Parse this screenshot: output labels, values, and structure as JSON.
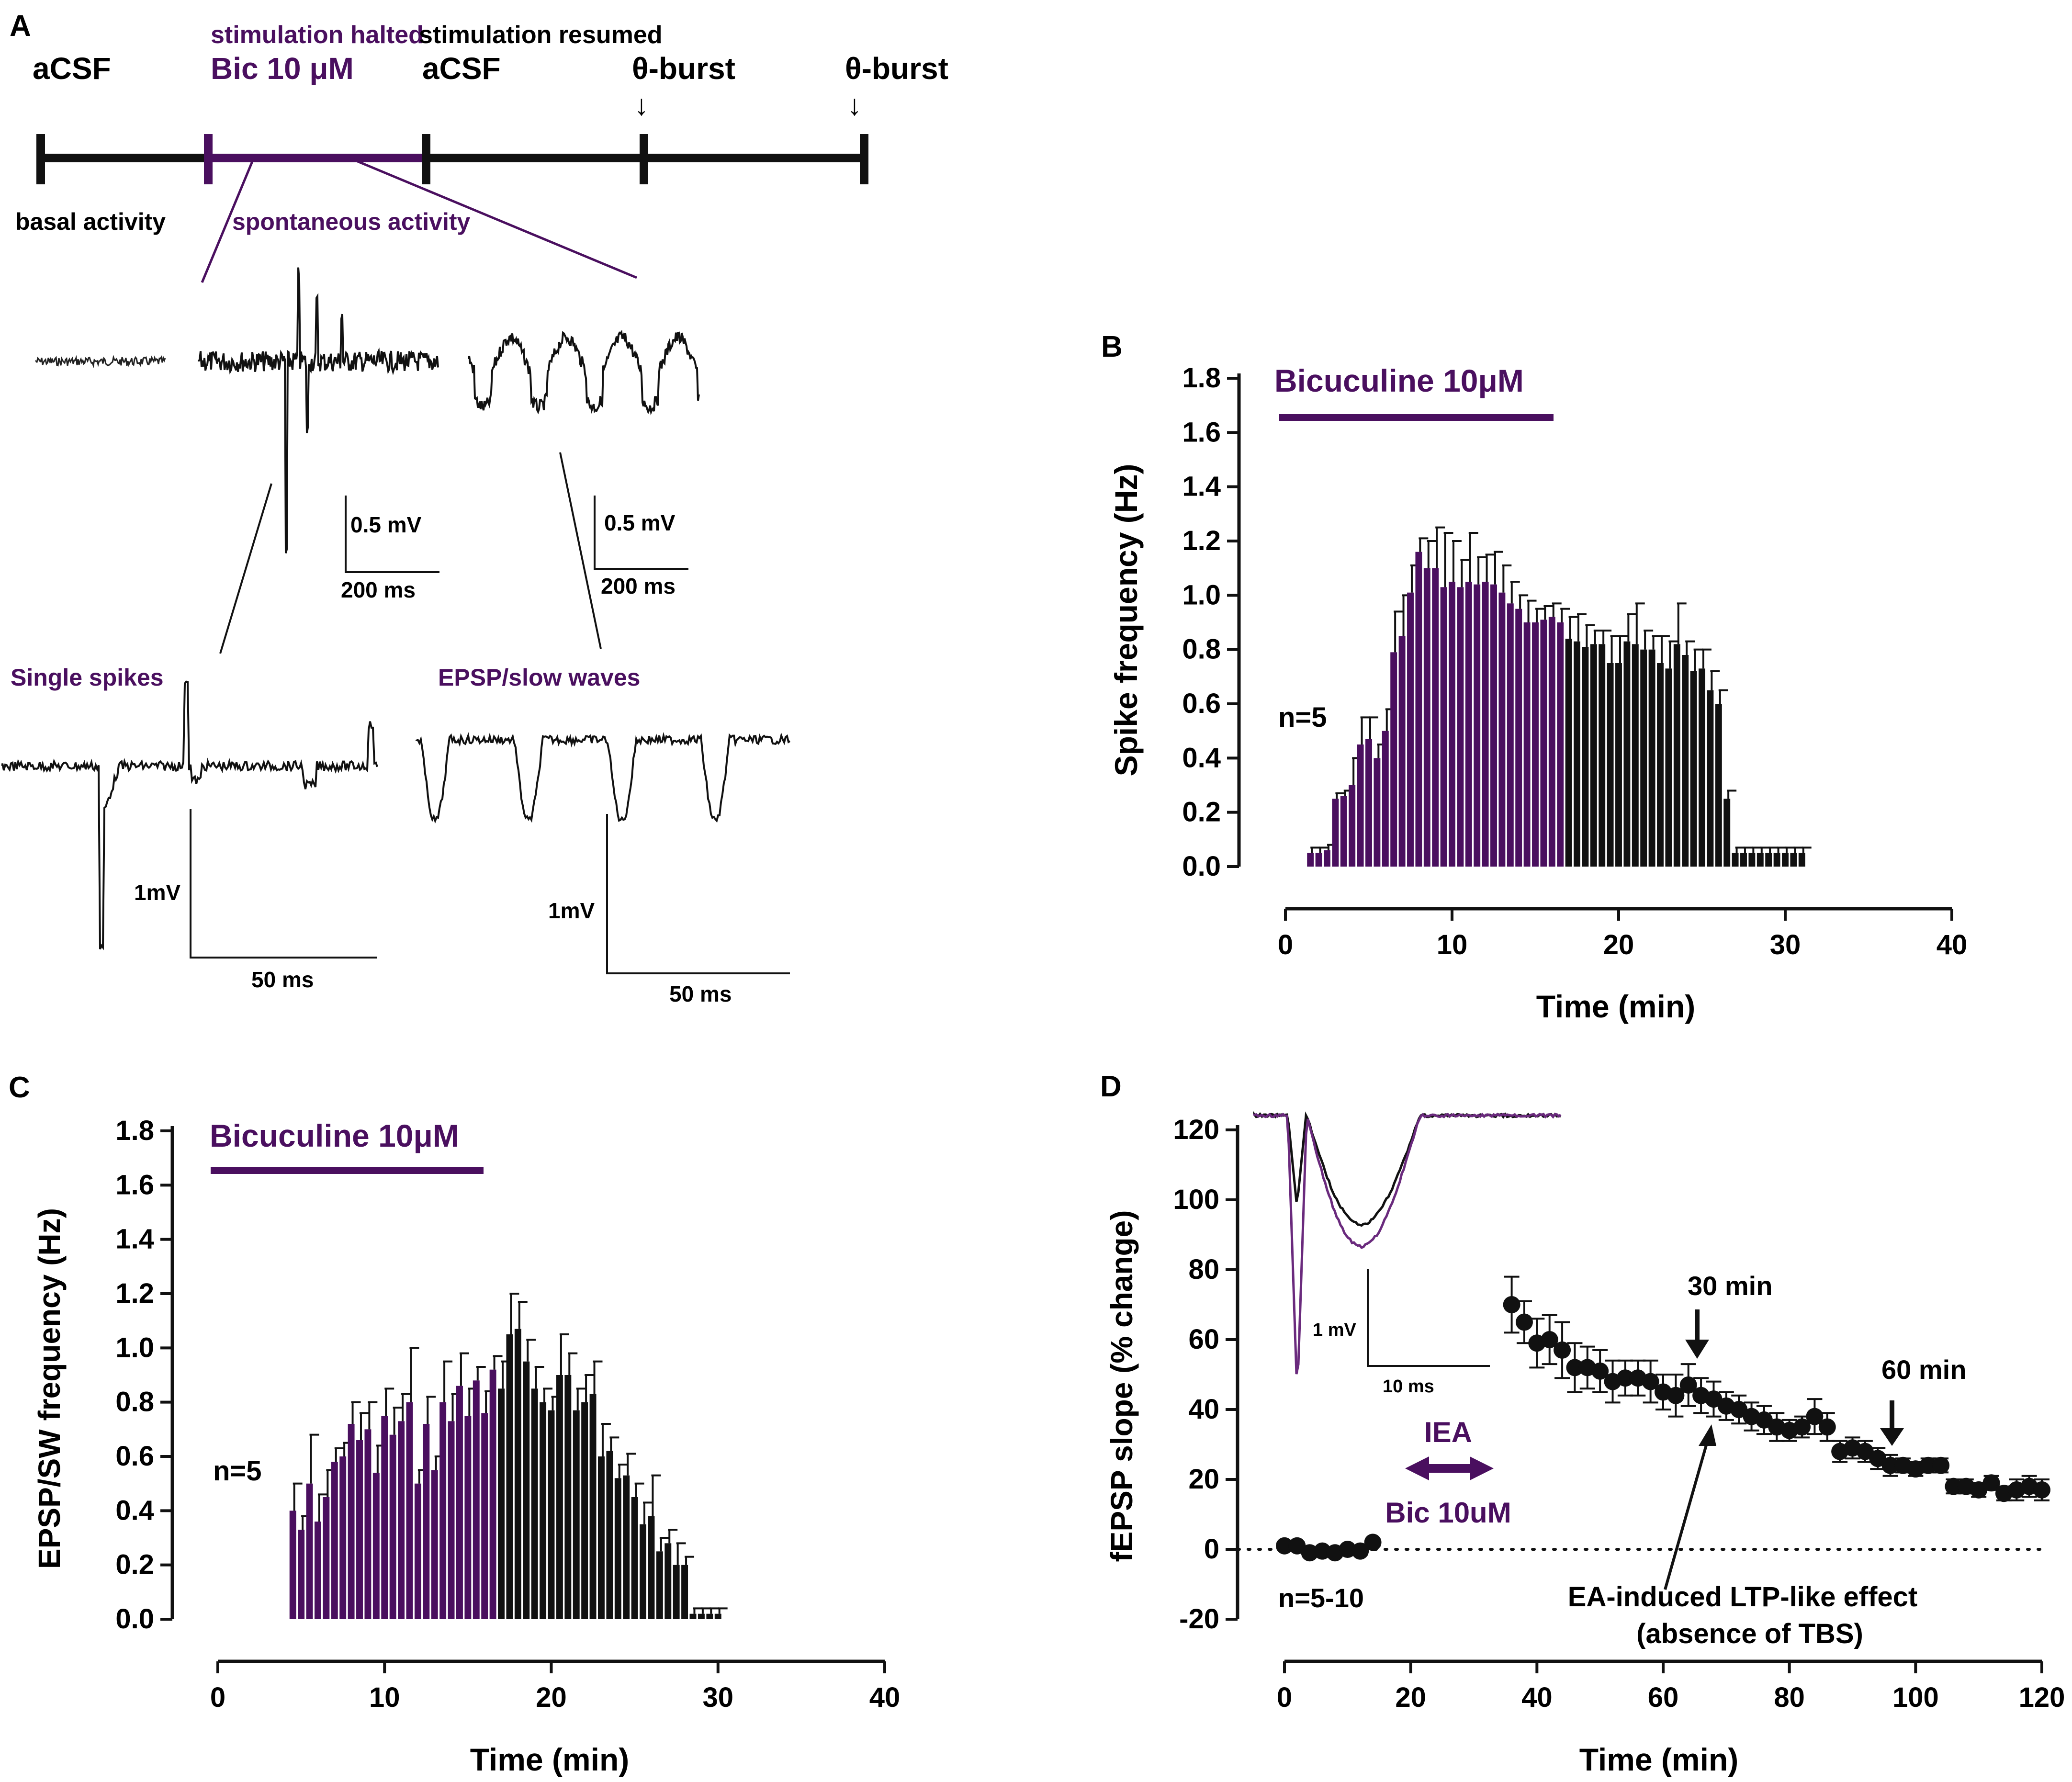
{
  "colors": {
    "purple": "#4a0f5f",
    "black": "#111111"
  },
  "panel_a": {
    "letter": "A",
    "timeline_labels": {
      "acsf1": "aCSF",
      "stim_halted": "stimulation halted",
      "bic": "Bic 10 μM",
      "stim_resumed": "stimulation resumed",
      "acsf2": "aCSF",
      "burst1": "θ-burst",
      "burst2": "θ-burst",
      "arrow": "↓"
    },
    "basal_activity": "basal activity",
    "spontaneous_activity": "spontaneous activity",
    "scale1": {
      "v": "0.5 mV",
      "t": "200 ms"
    },
    "scale2": {
      "v": "0.5 mV",
      "t": "200 ms"
    },
    "single_spikes": "Single spikes",
    "epsp_slow_waves": "EPSP/slow waves",
    "scale3": {
      "v": "1mV",
      "t": "50 ms"
    },
    "scale4": {
      "v": "1mV",
      "t": "50 ms"
    }
  },
  "panel_d_extra": {
    "iea": "IEA",
    "bic": "Bic 10uM",
    "arrow30": "30 min",
    "arrow60": "60 min",
    "annotation_line1": "EA-induced LTP-like effect",
    "annotation_line2": "(absence of TBS)",
    "inset_v": "1 mV",
    "inset_t": "10 ms"
  },
  "chart_data": [
    {
      "id": "B",
      "type": "bar",
      "letter": "B",
      "title": "Bicuculine 10μM",
      "xlabel": "Time (min)",
      "ylabel": "Spike frequency (Hz)",
      "xlim": [
        0,
        40
      ],
      "ylim": [
        0,
        1.8
      ],
      "xticks": [
        "0",
        "10",
        "20",
        "30",
        "40"
      ],
      "yticks": [
        "0.0",
        "0.2",
        "0.4",
        "0.6",
        "0.8",
        "1.0",
        "1.2",
        "1.4",
        "1.6",
        "1.8"
      ],
      "n_label": "n=5",
      "bar_line": [
        0,
        16
      ],
      "bic_until": 16.5,
      "x": [
        1.5,
        2,
        2.5,
        3,
        3.5,
        4,
        4.5,
        5,
        5.5,
        6,
        6.5,
        7,
        7.5,
        8,
        8.5,
        9,
        9.5,
        10,
        10.5,
        11,
        11.5,
        12,
        12.5,
        13,
        13.5,
        14,
        14.5,
        15,
        15.5,
        16,
        16.5,
        17,
        17.5,
        18,
        18.5,
        19,
        19.5,
        20,
        20.5,
        21,
        21.5,
        22,
        22.5,
        23,
        23.5,
        24,
        24.5,
        25,
        25.5,
        26,
        26.5,
        27,
        27.5,
        28,
        28.5,
        29,
        29.5,
        30,
        30.5,
        31
      ],
      "values": [
        0.05,
        0.05,
        0.06,
        0.25,
        0.26,
        0.3,
        0.45,
        0.47,
        0.4,
        0.5,
        0.79,
        0.85,
        1.01,
        1.16,
        1.1,
        1.1,
        1.03,
        1.05,
        1.03,
        1.05,
        1.04,
        1.05,
        1.04,
        1.01,
        0.97,
        0.95,
        0.9,
        0.9,
        0.91,
        0.92,
        0.9,
        0.84,
        0.83,
        0.81,
        0.82,
        0.82,
        0.75,
        0.75,
        0.83,
        0.82,
        0.8,
        0.8,
        0.75,
        0.73,
        0.82,
        0.78,
        0.72,
        0.73,
        0.65,
        0.6,
        0.25,
        0.05,
        0.05,
        0.05,
        0.05,
        0.05,
        0.05,
        0.05,
        0.05,
        0.05
      ],
      "errors": [
        0.02,
        0.02,
        0.02,
        0.02,
        0.02,
        0.1,
        0.1,
        0.08,
        0.05,
        0.08,
        0.15,
        0.15,
        0.1,
        0.05,
        0.1,
        0.15,
        0.2,
        0.15,
        0.1,
        0.18,
        0.1,
        0.1,
        0.12,
        0.1,
        0.08,
        0.05,
        0.08,
        0.05,
        0.05,
        0.05,
        0.05,
        0.08,
        0.1,
        0.08,
        0.05,
        0.05,
        0.1,
        0.1,
        0.1,
        0.15,
        0.07,
        0.05,
        0.1,
        0.1,
        0.15,
        0.05,
        0.08,
        0.07,
        0.07,
        0.05,
        0.03,
        0.02,
        0.02,
        0.02,
        0.02,
        0.02,
        0.02,
        0.02,
        0.02,
        0.02
      ]
    },
    {
      "id": "C",
      "type": "bar",
      "letter": "C",
      "title": "Bicuculine 10μM",
      "xlabel": "Time (min)",
      "ylabel": "EPSP/SW frequency (Hz)",
      "xlim": [
        0,
        40
      ],
      "ylim": [
        0,
        1.8
      ],
      "xticks": [
        "0",
        "10",
        "20",
        "30",
        "40"
      ],
      "yticks": [
        "0.0",
        "0.2",
        "0.4",
        "0.6",
        "0.8",
        "1.0",
        "1.2",
        "1.4",
        "1.6",
        "1.8"
      ],
      "n_label": "n=5",
      "bar_line": [
        0,
        16
      ],
      "bic_until": 16.5,
      "x": [
        4.5,
        5,
        5.5,
        6,
        6.5,
        7,
        7.5,
        8,
        8.5,
        9,
        9.5,
        10,
        10.5,
        11,
        11.5,
        12,
        12.5,
        13,
        13.5,
        14,
        14.5,
        15,
        15.5,
        16,
        16.5,
        17,
        17.5,
        18,
        18.5,
        19,
        19.5,
        20,
        20.5,
        21,
        21.5,
        22,
        22.5,
        23,
        23.5,
        24,
        24.5,
        25,
        25.5,
        26,
        26.5,
        27,
        27.5,
        28,
        28.5,
        29,
        29.5,
        30
      ],
      "values": [
        0.4,
        0.33,
        0.5,
        0.36,
        0.45,
        0.58,
        0.6,
        0.72,
        0.66,
        0.7,
        0.54,
        0.75,
        0.68,
        0.73,
        0.8,
        0.5,
        0.72,
        0.55,
        0.8,
        0.73,
        0.86,
        0.75,
        0.88,
        0.76,
        0.92,
        0.85,
        1.05,
        1.07,
        0.95,
        0.85,
        0.8,
        0.77,
        0.9,
        0.9,
        0.77,
        0.8,
        0.83,
        0.6,
        0.62,
        0.52,
        0.53,
        0.45,
        0.35,
        0.38,
        0.25,
        0.28,
        0.2,
        0.2,
        0.02,
        0.02,
        0.02,
        0.02
      ],
      "errors": [
        0.1,
        0.05,
        0.18,
        0.1,
        0.1,
        0.05,
        0.05,
        0.08,
        0.1,
        0.1,
        0.1,
        0.1,
        0.1,
        0.1,
        0.2,
        0.05,
        0.1,
        0.05,
        0.15,
        0.1,
        0.12,
        0.1,
        0.05,
        0.08,
        0.05,
        0.1,
        0.15,
        0.1,
        0.08,
        0.08,
        0.05,
        0.05,
        0.15,
        0.08,
        0.08,
        0.1,
        0.12,
        0.12,
        0.05,
        0.05,
        0.08,
        0.05,
        0.08,
        0.15,
        0.05,
        0.05,
        0.08,
        0.03,
        0.02,
        0.02,
        0.02,
        0.02
      ]
    },
    {
      "id": "D",
      "type": "scatter",
      "letter": "D",
      "title": "",
      "xlabel": "Time (min)",
      "ylabel": "fEPSP slope (% change)",
      "xlim": [
        0,
        120
      ],
      "ylim": [
        -20,
        120
      ],
      "xticks": [
        "0",
        "20",
        "40",
        "60",
        "80",
        "100",
        "120"
      ],
      "yticks": [
        "-20",
        "0",
        "20",
        "40",
        "60",
        "80",
        "100",
        "120"
      ],
      "n_label": "n=5-10",
      "x": [
        0,
        2,
        4,
        6,
        8,
        10,
        12,
        14,
        36,
        38,
        40,
        42,
        44,
        46,
        48,
        50,
        52,
        54,
        56,
        58,
        60,
        62,
        64,
        66,
        68,
        70,
        72,
        74,
        76,
        78,
        80,
        82,
        84,
        86,
        88,
        90,
        92,
        94,
        96,
        98,
        100,
        102,
        104,
        106,
        108,
        110,
        112,
        114,
        116,
        118,
        120
      ],
      "y": [
        1,
        1,
        -1,
        -0.5,
        -1,
        0,
        -0.5,
        2,
        70,
        65,
        59,
        60,
        57,
        52,
        52,
        51,
        48,
        49,
        49,
        48,
        45,
        44,
        47,
        44,
        43,
        41,
        40,
        38,
        37,
        35,
        34,
        35,
        38,
        35,
        28,
        29,
        28,
        26,
        24,
        24,
        23,
        24,
        24,
        18,
        18,
        17,
        19,
        16,
        17,
        18,
        17
      ],
      "errors": [
        1,
        1,
        1,
        1,
        1,
        1,
        1,
        1,
        8,
        6,
        7,
        7,
        8,
        7,
        6,
        6,
        6,
        5,
        5,
        6,
        5,
        6,
        6,
        5,
        5,
        4,
        4,
        4,
        4,
        4,
        3,
        3,
        5,
        4,
        3,
        3,
        3,
        3,
        3,
        2,
        2,
        2,
        2,
        2,
        2,
        2,
        2,
        2,
        3,
        3,
        3
      ]
    }
  ]
}
